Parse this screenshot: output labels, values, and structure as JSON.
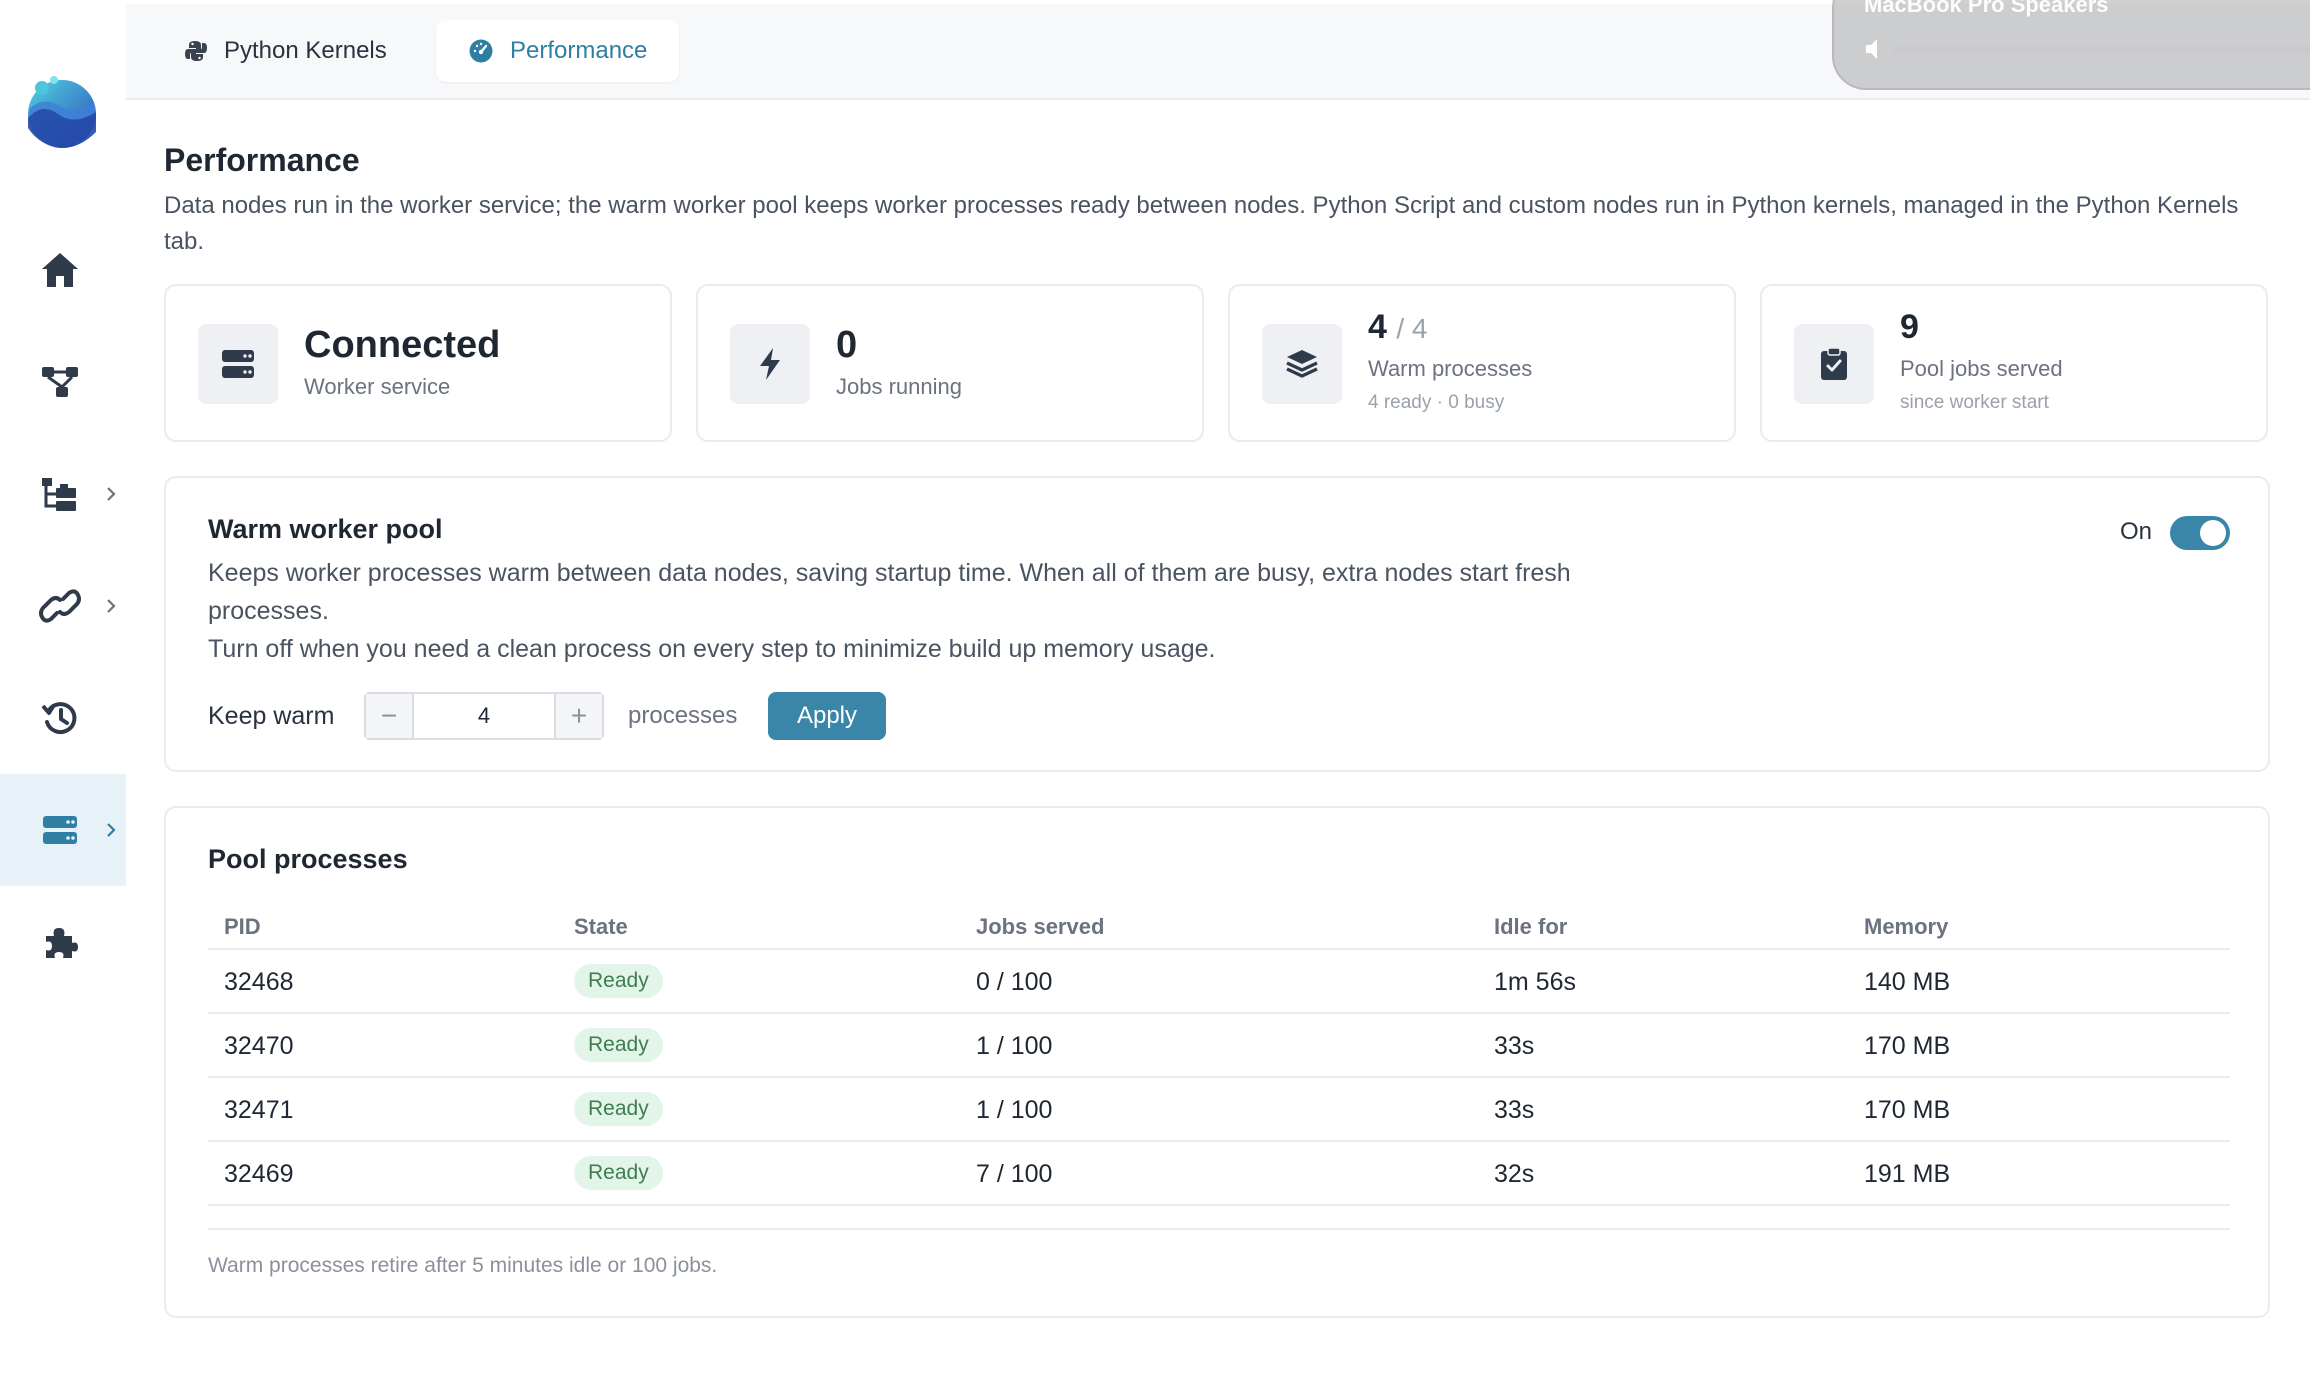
{
  "sidebar": {
    "logo": "app-logo",
    "items": [
      {
        "name": "home",
        "icon": "home-icon"
      },
      {
        "name": "workflow",
        "icon": "workflow-icon"
      },
      {
        "name": "catalog",
        "icon": "hierarchy-icon",
        "has_chevron": true
      },
      {
        "name": "connections",
        "icon": "link-icon",
        "has_chevron": true
      },
      {
        "name": "history",
        "icon": "history-icon"
      },
      {
        "name": "server",
        "icon": "server-icon",
        "has_chevron": true,
        "active": true
      },
      {
        "name": "plugins",
        "icon": "puzzle-icon"
      }
    ]
  },
  "tabs": [
    {
      "label": "Python Kernels",
      "icon": "python-icon",
      "active": false
    },
    {
      "label": "Performance",
      "icon": "gauge-icon",
      "active": true
    }
  ],
  "volume_hud": {
    "title": "MacBook Pro Speakers",
    "level": 0
  },
  "page": {
    "title": "Performance",
    "description": "Data nodes run in the worker service; the warm worker pool keeps worker processes ready between nodes. Python Script and custom nodes run in Python kernels, managed in the Python Kernels tab."
  },
  "stats": {
    "worker": {
      "value": "Connected",
      "label": "Worker service",
      "icon": "server-icon"
    },
    "jobs": {
      "value": "0",
      "label": "Jobs running",
      "icon": "bolt-icon"
    },
    "warm": {
      "value": "4",
      "total": "/ 4",
      "label": "Warm processes",
      "sub": "4 ready · 0 busy",
      "icon": "layers-icon"
    },
    "served": {
      "value": "9",
      "label": "Pool jobs served",
      "sub": "since worker start",
      "icon": "clipboard-check-icon"
    }
  },
  "pool": {
    "title": "Warm worker pool",
    "description_1": "Keeps worker processes warm between data nodes, saving startup time. When all of them are busy, extra nodes start fresh processes.",
    "description_2": "Turn off when you need a clean process on every step to minimize build up memory usage.",
    "toggle_label": "On",
    "toggle_on": true,
    "keep_label": "Keep warm",
    "keep_value": "4",
    "minus_label": "−",
    "plus_label": "+",
    "unit_label": "processes",
    "apply_label": "Apply"
  },
  "processes": {
    "title": "Pool processes",
    "columns": [
      "PID",
      "State",
      "Jobs served",
      "Idle for",
      "Memory"
    ],
    "rows": [
      {
        "pid": "32468",
        "state": "Ready",
        "jobs": "0 / 100",
        "idle": "1m 56s",
        "memory": "140 MB"
      },
      {
        "pid": "32470",
        "state": "Ready",
        "jobs": "1 / 100",
        "idle": "33s",
        "memory": "170 MB"
      },
      {
        "pid": "32471",
        "state": "Ready",
        "jobs": "1 / 100",
        "idle": "33s",
        "memory": "170 MB"
      },
      {
        "pid": "32469",
        "state": "Ready",
        "jobs": "7 / 100",
        "idle": "32s",
        "memory": "191 MB"
      }
    ],
    "footnote": "Warm processes retire after 5 minutes idle or 100 jobs."
  },
  "colors": {
    "accent": "#3a86a8",
    "icon": "#2f3a4a",
    "badge_bg": "#e3f5e9",
    "badge_text": "#3f7d52"
  }
}
